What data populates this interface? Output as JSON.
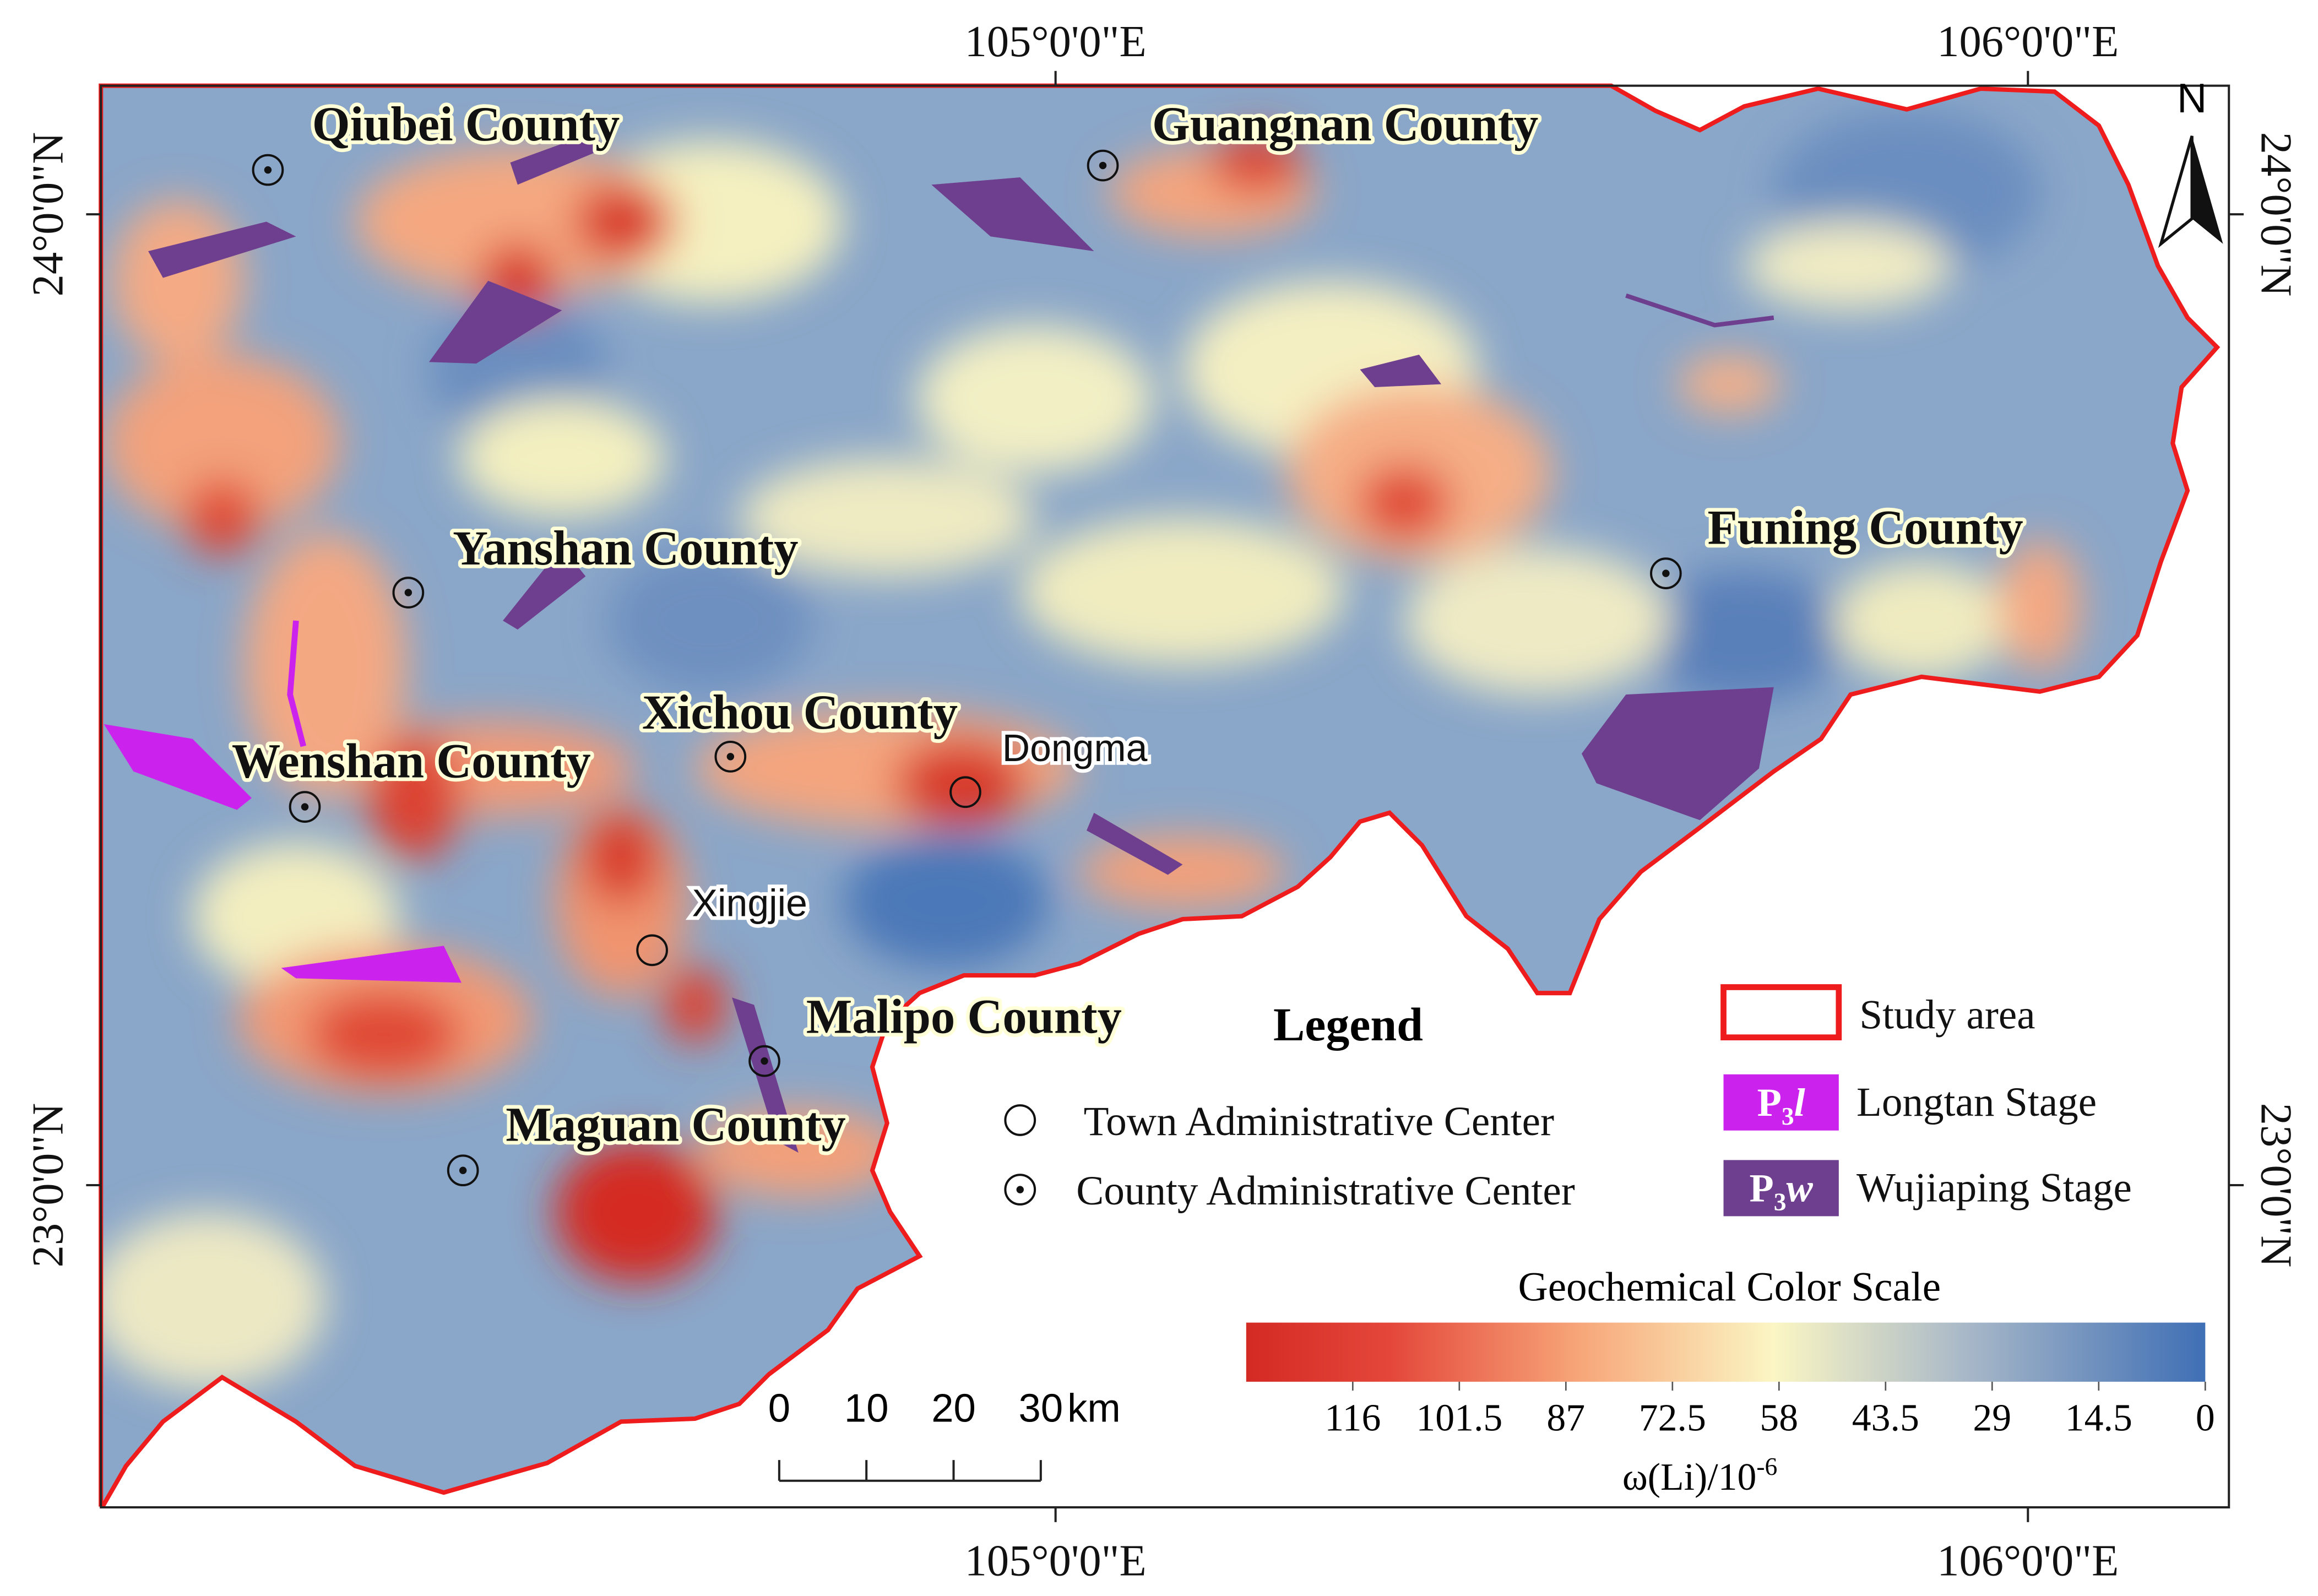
{
  "graticule": {
    "longitude": {
      "ticks": [
        {
          "value": 105,
          "label": "105°0'0\"E"
        },
        {
          "value": 106,
          "label": "106°0'0\"E"
        }
      ]
    },
    "latitude": {
      "ticks": [
        {
          "value": 24,
          "label": "24°0'0\"N"
        },
        {
          "value": 23,
          "label": "23°0'0\"N"
        }
      ]
    }
  },
  "north_arrow": "N",
  "places": [
    {
      "label": "Qiubei County",
      "kind": "county"
    },
    {
      "label": "Guangnan County",
      "kind": "county"
    },
    {
      "label": "Yanshan County",
      "kind": "county"
    },
    {
      "label": "Funing County",
      "kind": "county"
    },
    {
      "label": "Xichou County",
      "kind": "county"
    },
    {
      "label": "Dongma",
      "kind": "town"
    },
    {
      "label": "Wenshan County",
      "kind": "county"
    },
    {
      "label": "Xingjie",
      "kind": "town"
    },
    {
      "label": "Malipo County",
      "kind": "county"
    },
    {
      "label": "Maguan County",
      "kind": "county"
    }
  ],
  "legend": {
    "title": "Legend",
    "symbols": [
      {
        "label": "Town Administrative Center"
      },
      {
        "label": "County Administrative Center"
      }
    ],
    "study_area": "Study area",
    "units": [
      {
        "code": {
          "base": "P",
          "sub": "3",
          "italic": "l"
        },
        "label": "Longtan Stage",
        "color": "#cc22ee"
      },
      {
        "code": {
          "base": "P",
          "sub": "3",
          "italic": "w"
        },
        "label": "Wujiaping Stage",
        "color": "#6e3f8e"
      }
    ]
  },
  "color_scale": {
    "title": "Geochemical Color Scale",
    "range": [
      130.5,
      0
    ],
    "ticks": [
      116,
      101.5,
      87,
      72.5,
      58,
      43.5,
      29,
      14.5,
      0
    ],
    "unit": {
      "base": "ω(Li)/10",
      "sup": "-6"
    }
  },
  "scale_bar": {
    "ticks": [
      0,
      10,
      20,
      30
    ],
    "unit": "km"
  }
}
